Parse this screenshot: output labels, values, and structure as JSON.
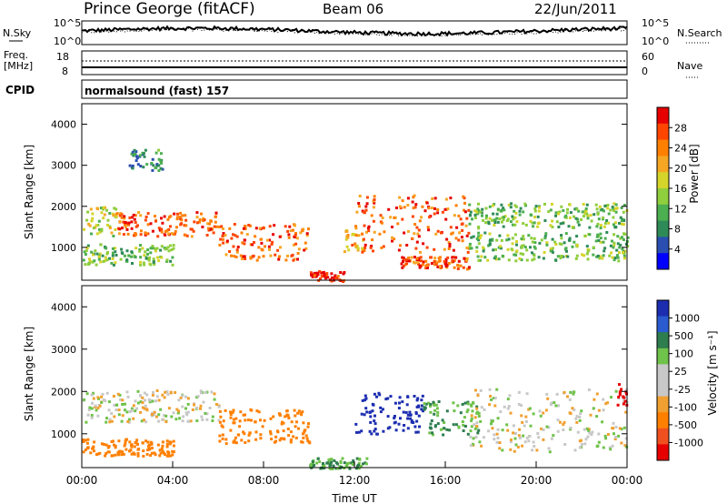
{
  "header": {
    "station": "Prince George (fitACF)",
    "beam": "Beam 06",
    "date": "22/Jun/2011"
  },
  "strip_labels": {
    "nsky": "N.Sky",
    "nsearch": "N.Search",
    "freq": "Freq.",
    "mhz": "[MHz]",
    "nave": "Nave",
    "cpid": "CPID",
    "cpid_value": "normalsound (fast) 157"
  },
  "noise_axis": {
    "top": "10^5",
    "bottom": "10^0",
    "right_top": "10^5",
    "right_bottom": "10^0"
  },
  "freq_axis": {
    "left": [
      "18",
      "8"
    ],
    "right": [
      "60",
      "0"
    ]
  },
  "colors": {
    "power": [
      "#0000ff",
      "#2a4fb0",
      "#2e8b57",
      "#4caf50",
      "#8fce3c",
      "#d4d42a",
      "#f5a623",
      "#ff7f00",
      "#ff4500",
      "#e60000"
    ],
    "velocity": [
      "#1c2db0",
      "#2a5bd0",
      "#2e7d4f",
      "#6fc24a",
      "#c8c8c8",
      "#c8c8c8",
      "#f0a030",
      "#ff7f00",
      "#f05020",
      "#e60000"
    ]
  },
  "chart_data": [
    {
      "type": "heatmap",
      "panel": "power",
      "ylabel": "Slant Range [km]",
      "yticks": [
        "1000",
        "2000",
        "3000",
        "4000"
      ],
      "ylim": [
        200,
        4500
      ],
      "xlim": [
        "00:00",
        "24:00"
      ],
      "colorbar": {
        "label": "Power [dB]",
        "ticks": [
          "4",
          "8",
          "12",
          "16",
          "20",
          "24",
          "28"
        ],
        "range": [
          0,
          30
        ]
      },
      "echo_bands": [
        {
          "x": [
            0,
            1.5
          ],
          "y": [
            1300,
            2050
          ],
          "level": 16
        },
        {
          "x": [
            1.5,
            6
          ],
          "y": [
            1300,
            1900
          ],
          "level": 24
        },
        {
          "x": [
            0,
            4
          ],
          "y": [
            600,
            1100
          ],
          "level": 12
        },
        {
          "x": [
            6,
            10
          ],
          "y": [
            700,
            1600
          ],
          "level": 24
        },
        {
          "x": [
            10,
            11.5
          ],
          "y": [
            200,
            450
          ],
          "level": 28
        },
        {
          "x": [
            11.5,
            12.5
          ],
          "y": [
            900,
            1500
          ],
          "level": 20
        },
        {
          "x": [
            12,
            17
          ],
          "y": [
            900,
            2300
          ],
          "level": 24
        },
        {
          "x": [
            14,
            17
          ],
          "y": [
            500,
            800
          ],
          "level": 24
        },
        {
          "x": [
            17,
            24
          ],
          "y": [
            700,
            1400
          ],
          "level": 12
        },
        {
          "x": [
            17,
            24
          ],
          "y": [
            1500,
            2100
          ],
          "level": 12
        },
        {
          "x": [
            2,
            3.5
          ],
          "y": [
            2900,
            3400
          ],
          "level": 8
        }
      ]
    },
    {
      "type": "heatmap",
      "panel": "velocity",
      "ylabel": "Slant Range [km]",
      "xlabel": "Time UT",
      "yticks": [
        "1000",
        "2000",
        "3000",
        "4000"
      ],
      "ylim": [
        200,
        4500
      ],
      "xticks": [
        "00:00",
        "04:00",
        "08:00",
        "12:00",
        "16:00",
        "20:00",
        "00:00"
      ],
      "xlim": [
        "00:00",
        "24:00"
      ],
      "colorbar": {
        "label": "Velocity [m s⁻¹]",
        "ticks": [
          "1000",
          "500",
          "100",
          "25",
          "-25",
          "-100",
          "-500",
          "-1000"
        ]
      },
      "echo_bands": [
        {
          "x": [
            0,
            6
          ],
          "y": [
            1300,
            2050
          ],
          "level": 0
        },
        {
          "x": [
            0,
            4
          ],
          "y": [
            500,
            900
          ],
          "level": -300
        },
        {
          "x": [
            6,
            10
          ],
          "y": [
            800,
            1600
          ],
          "level": -300
        },
        {
          "x": [
            10,
            12.5
          ],
          "y": [
            200,
            450
          ],
          "level": 100
        },
        {
          "x": [
            12,
            15
          ],
          "y": [
            1000,
            2000
          ],
          "level": 800
        },
        {
          "x": [
            15,
            17.5
          ],
          "y": [
            1000,
            1800
          ],
          "level": 100
        },
        {
          "x": [
            17,
            24
          ],
          "y": [
            600,
            2100
          ],
          "level": 0
        },
        {
          "x": [
            23.5,
            24
          ],
          "y": [
            1700,
            2200
          ],
          "level": -700
        }
      ]
    }
  ]
}
